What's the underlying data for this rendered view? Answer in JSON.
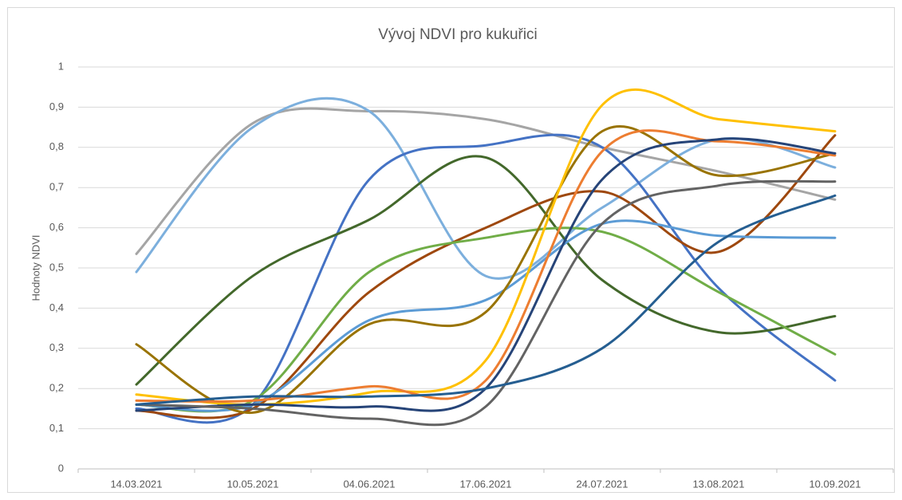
{
  "chart_data": {
    "type": "line",
    "title": "Vývoj NDVI pro kukuřici",
    "y_label": "Hodnoty NDVI",
    "categories": [
      "14.03.2021",
      "10.05.2021",
      "04.06.2021",
      "17.06.2021",
      "24.07.2021",
      "13.08.2021",
      "10.09.2021"
    ],
    "ylim": [
      0,
      1
    ],
    "yticks": [
      0,
      {
        "value": 0.1,
        "label": "0,1"
      },
      {
        "value": 0.2,
        "label": "0,2"
      },
      {
        "value": 0.3,
        "label": "0,3"
      },
      {
        "value": 0.4,
        "label": "0,4"
      },
      {
        "value": 0.5,
        "label": "0,5"
      },
      {
        "value": 0.6,
        "label": "0,6"
      },
      {
        "value": 0.7,
        "label": "0,7"
      },
      {
        "value": 0.8,
        "label": "0,8"
      },
      {
        "value": 0.9,
        "label": "0,9"
      },
      1
    ],
    "grid": true,
    "smooth": true,
    "series": [
      {
        "color": "#a5a5a5",
        "values": [
          0.535,
          0.86,
          0.89,
          0.87,
          0.8,
          0.74,
          0.67
        ]
      },
      {
        "color": "#7cafdd",
        "values": [
          0.49,
          0.85,
          0.89,
          0.48,
          0.65,
          0.82,
          0.75
        ]
      },
      {
        "color": "#4472c4",
        "values": [
          0.15,
          0.16,
          0.72,
          0.805,
          0.8,
          0.45,
          0.22
        ]
      },
      {
        "color": "#43682b",
        "values": [
          0.21,
          0.48,
          0.62,
          0.775,
          0.47,
          0.34,
          0.38
        ]
      },
      {
        "color": "#9e480e",
        "values": [
          0.145,
          0.15,
          0.44,
          0.6,
          0.69,
          0.54,
          0.83
        ]
      },
      {
        "color": "#70ad47",
        "values": [
          0.16,
          0.17,
          0.49,
          0.575,
          0.59,
          0.44,
          0.285
        ]
      },
      {
        "color": "#5b9bd5",
        "values": [
          0.16,
          0.16,
          0.37,
          0.42,
          0.61,
          0.58,
          0.575
        ]
      },
      {
        "color": "#997300",
        "values": [
          0.31,
          0.14,
          0.36,
          0.39,
          0.84,
          0.73,
          0.785
        ]
      },
      {
        "color": "#ffc000",
        "values": [
          0.185,
          0.16,
          0.19,
          0.27,
          0.905,
          0.87,
          0.84
        ]
      },
      {
        "color": "#ed7d31",
        "values": [
          0.17,
          0.17,
          0.205,
          0.22,
          0.79,
          0.815,
          0.78
        ]
      },
      {
        "color": "#264478",
        "values": [
          0.145,
          0.16,
          0.155,
          0.2,
          0.72,
          0.82,
          0.785
        ]
      },
      {
        "color": "#636363",
        "values": [
          0.16,
          0.15,
          0.125,
          0.155,
          0.61,
          0.705,
          0.715
        ]
      },
      {
        "color": "#255e91",
        "values": [
          0.16,
          0.18,
          0.18,
          0.2,
          0.3,
          0.565,
          0.68
        ]
      }
    ]
  }
}
